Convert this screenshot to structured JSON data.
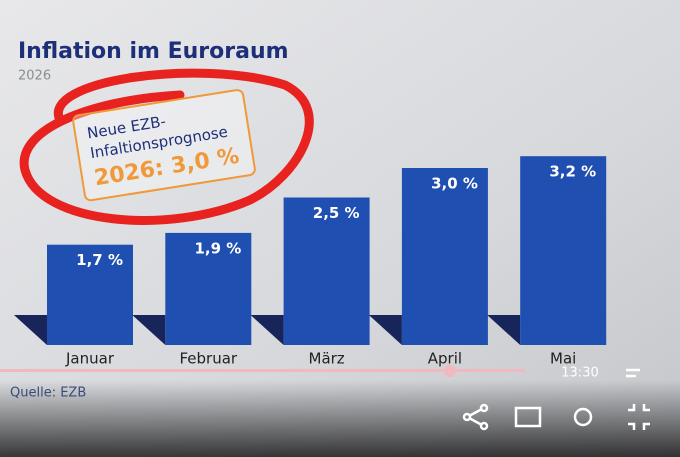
{
  "chart_data": {
    "type": "bar",
    "title": "Inflation im Euroraum",
    "subtitle": "2026",
    "categories": [
      "Januar",
      "Februar",
      "März",
      "April",
      "Mai"
    ],
    "values": [
      1.7,
      1.9,
      2.5,
      3.0,
      3.2
    ],
    "value_labels": [
      "1,7 %",
      "1,9 %",
      "2,5 %",
      "3,0 %",
      "3,2 %"
    ],
    "color": "#1f4fb0",
    "annotation": {
      "line1": "Neue EZB-",
      "line2": "Infaltionsprognose",
      "line3": "2026: 3,0 %"
    },
    "source": "Quelle: EZB"
  },
  "player": {
    "time": "13:30"
  }
}
